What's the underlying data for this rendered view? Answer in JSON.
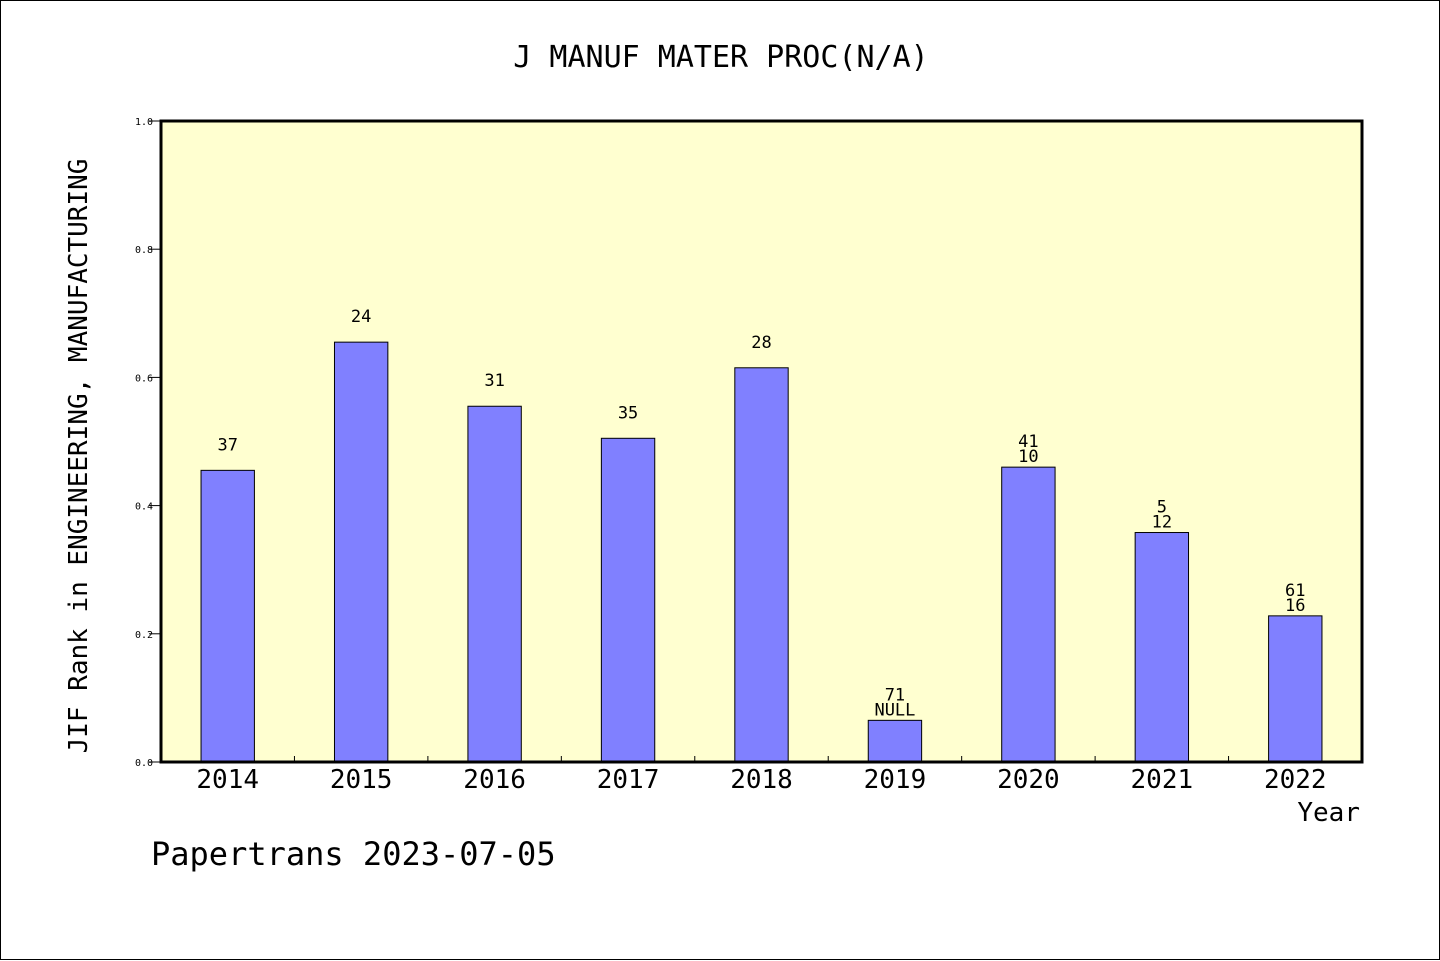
{
  "chart_data": {
    "type": "bar",
    "title": "J MANUF MATER PROC(N/A)",
    "xlabel": "Year",
    "ylabel": "JIF Rank in ENGINEERING, MANUFACTURING",
    "ylim": [
      0,
      1.0
    ],
    "yticks": [
      "0.0",
      "0.2",
      "0.4",
      "0.6",
      "0.8",
      "1.0"
    ],
    "categories": [
      "2014",
      "2015",
      "2016",
      "2017",
      "2018",
      "2019",
      "2020",
      "2021",
      "2022"
    ],
    "values": [
      0.455,
      0.655,
      0.555,
      0.505,
      0.615,
      0.065,
      0.46,
      0.358,
      0.228
    ],
    "labels_top": [
      "37",
      "24",
      "31",
      "35",
      "28",
      "71",
      "41",
      "5",
      "61"
    ],
    "labels_bottom": [
      "",
      "",
      "",
      "",
      "",
      "NULL",
      "10",
      "12",
      "16"
    ],
    "grid": false,
    "colors": {
      "plot_background": "#FFFFD0",
      "bar_fill": "#8080FF",
      "bar_stroke": "#000000",
      "axis": "#000000"
    }
  },
  "footer": {
    "credit": "Papertrans 2023-07-05"
  }
}
